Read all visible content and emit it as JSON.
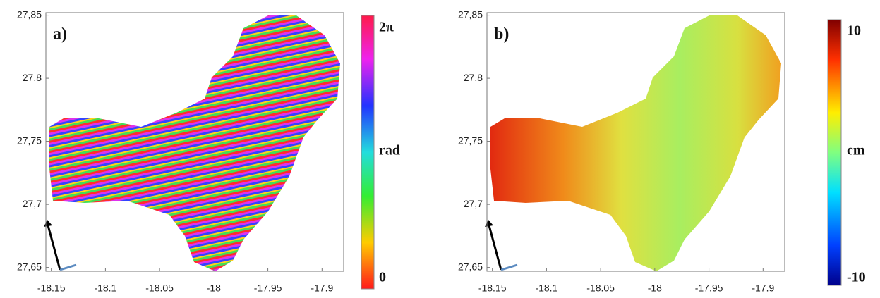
{
  "panels": [
    {
      "label": "a)",
      "xlim": [
        -18.155,
        -17.88
      ],
      "ylim": [
        27.647,
        27.852
      ],
      "xticks": [
        -18.15,
        -18.1,
        -18.05,
        -18,
        -17.95,
        -17.9
      ],
      "yticks": [
        {
          "value": 27.65,
          "label": "27,65"
        },
        {
          "value": 27.7,
          "label": "27,7"
        },
        {
          "value": 27.75,
          "label": "27,75"
        },
        {
          "value": 27.8,
          "label": "27,8"
        },
        {
          "value": 27.85,
          "label": "27,85"
        }
      ],
      "colorbar": {
        "top": "2π",
        "middle": "rad",
        "bottom": "0"
      }
    },
    {
      "label": "b)",
      "xlim": [
        -18.155,
        -17.88
      ],
      "ylim": [
        27.647,
        27.852
      ],
      "xticks": [
        -18.15,
        -18.1,
        -18.05,
        -18,
        -17.95,
        -17.9
      ],
      "yticks": [
        {
          "value": 27.65,
          "label": "27,65"
        },
        {
          "value": 27.7,
          "label": "27,7"
        },
        {
          "value": 27.75,
          "label": "27,75"
        },
        {
          "value": 27.8,
          "label": "27,8"
        },
        {
          "value": 27.85,
          "label": "27,85"
        }
      ],
      "colorbar": {
        "top": "10",
        "middle": "cm",
        "bottom": "-10"
      }
    }
  ]
}
